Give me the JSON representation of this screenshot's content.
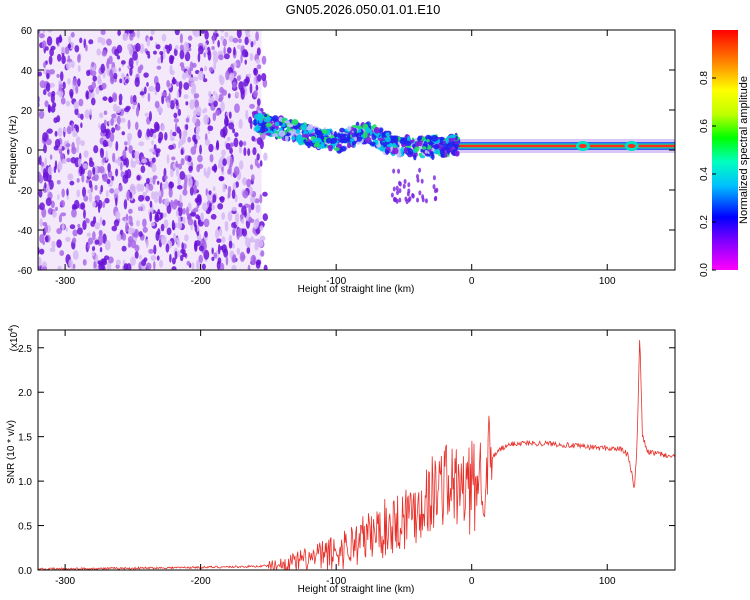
{
  "title": "GN05.2026.050.01.01.E10",
  "colors": {
    "signal": "#e8302a",
    "noise_purple": "#7a1fe0",
    "background": "#ffffff"
  },
  "chart_data": [
    {
      "type": "heatmap",
      "name": "spectrogram",
      "xlabel": "Height of straight line (km)",
      "ylabel": "Frequency (Hz)",
      "xlim": [
        -320,
        150
      ],
      "ylim": [
        -60,
        60
      ],
      "xticks": [
        -300,
        -200,
        -100,
        0,
        100
      ],
      "yticks": [
        -60,
        -40,
        -20,
        0,
        20,
        40,
        60
      ],
      "noise_region_x": [
        -320,
        -155
      ],
      "signal_band": {
        "x": [
          -160,
          -140,
          -120,
          -100,
          -80,
          -60,
          -40,
          -20,
          0,
          20,
          40,
          60,
          80,
          100,
          120,
          150
        ],
        "freq": [
          14,
          11,
          7,
          4,
          9,
          3,
          1,
          2,
          3,
          2,
          2,
          2,
          2,
          2,
          2,
          2
        ]
      },
      "colorbar": {
        "label": "Normalized spectral amplitude",
        "range": [
          0.0,
          1.0
        ],
        "ticks": [
          "0.0",
          "0.2",
          "0.4",
          "0.6",
          "0.8"
        ]
      }
    },
    {
      "type": "line",
      "name": "snr",
      "xlabel": "Height of straight line (km)",
      "ylabel": "SNR (10 * v/v)",
      "multiplier": "(x10",
      "multiplier_exp": "4",
      "xlim": [
        -320,
        150
      ],
      "ylim": [
        0.0,
        2.7
      ],
      "xticks": [
        -300,
        -200,
        -100,
        0,
        100
      ],
      "yticks": [
        "0.0",
        "0.5",
        "1.0",
        "1.5",
        "2.0",
        "2.5"
      ],
      "series": [
        {
          "name": "SNR",
          "x": [
            -320,
            -250,
            -200,
            -160,
            -140,
            -120,
            -100,
            -80,
            -60,
            -40,
            -30,
            -20,
            -10,
            0,
            10,
            20,
            30,
            40,
            60,
            80,
            100,
            110,
            115,
            118,
            120,
            122,
            124,
            126,
            130,
            140,
            150
          ],
          "y": [
            0.01,
            0.02,
            0.03,
            0.04,
            0.06,
            0.12,
            0.2,
            0.35,
            0.5,
            0.7,
            0.85,
            1.0,
            0.9,
            0.9,
            1.15,
            1.35,
            1.42,
            1.43,
            1.42,
            1.39,
            1.37,
            1.36,
            1.3,
            1.1,
            0.9,
            1.4,
            2.65,
            1.5,
            1.33,
            1.3,
            1.27
          ]
        }
      ]
    }
  ]
}
